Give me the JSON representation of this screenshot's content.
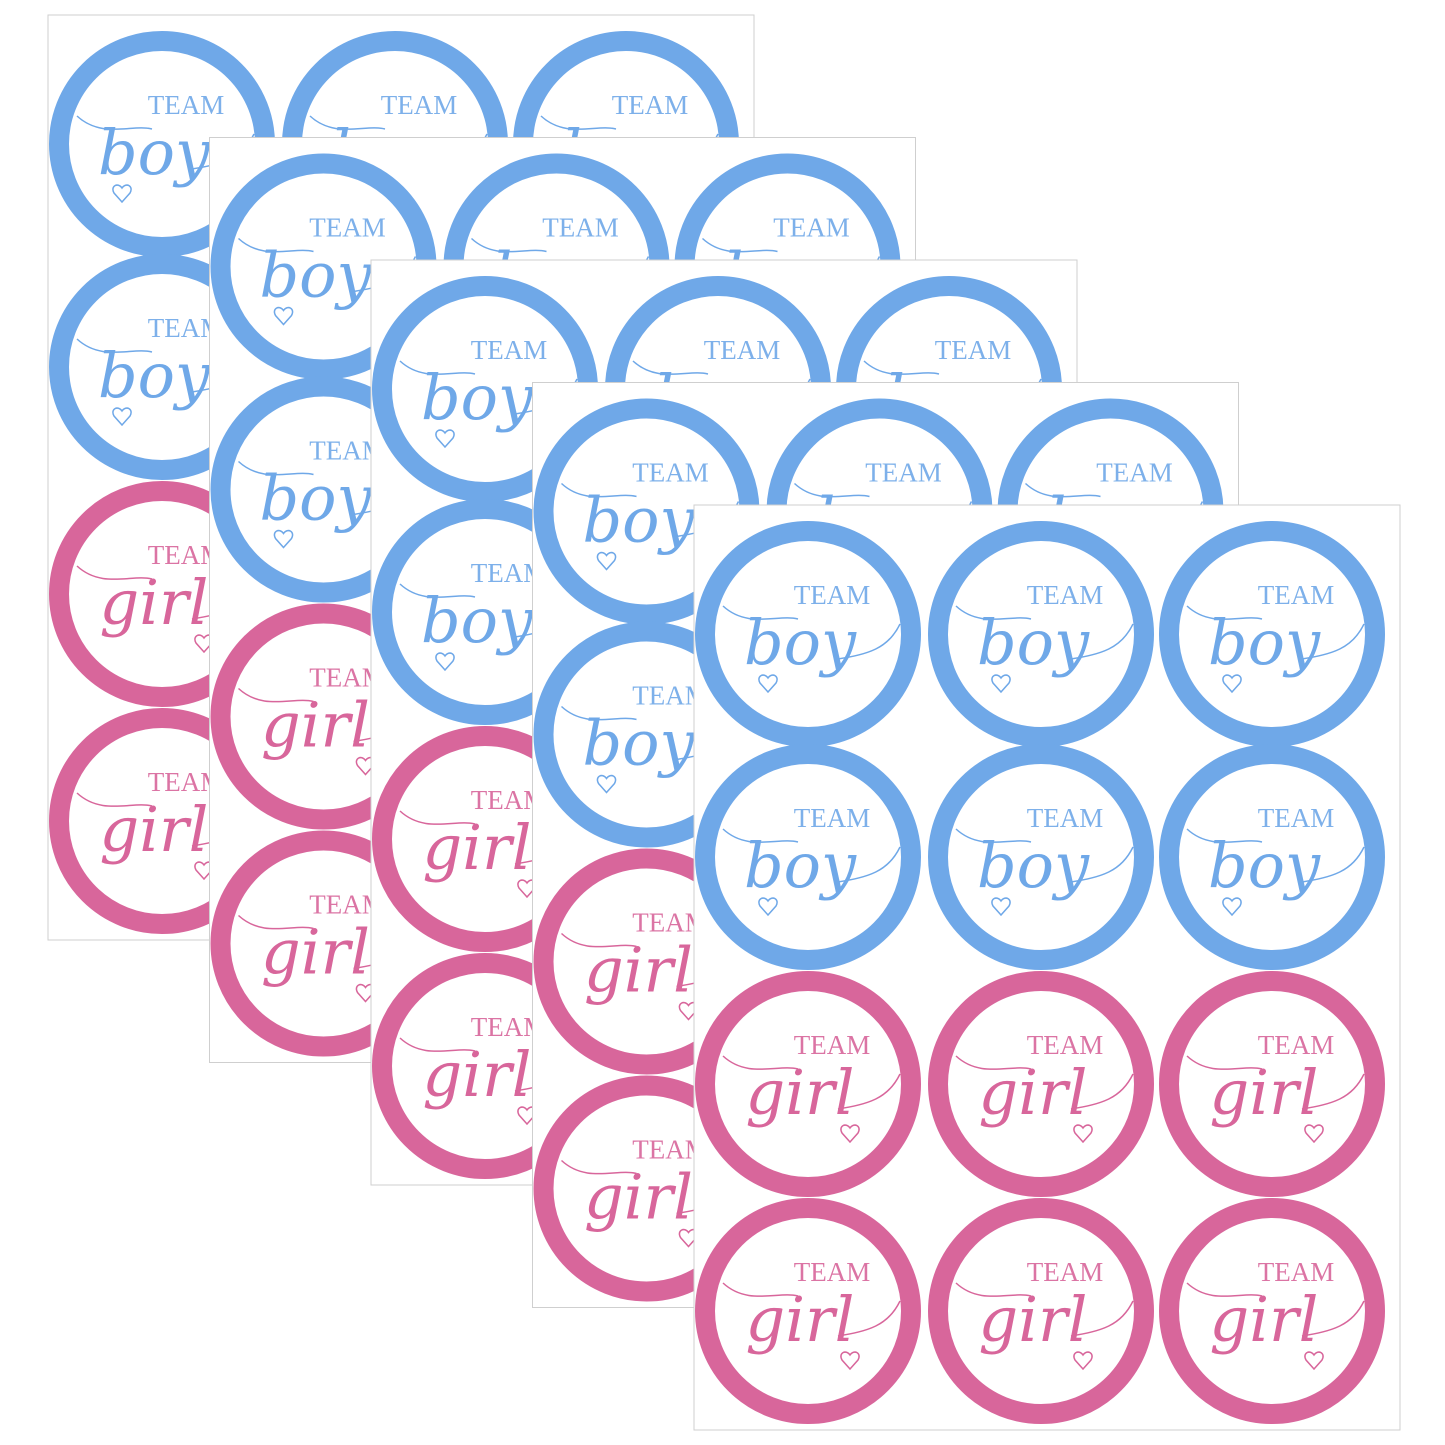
{
  "sheet": {
    "stickers": [
      {
        "team": "TEAM",
        "word": "boy",
        "color": "#6fa8e8"
      },
      {
        "team": "TEAM",
        "word": "boy",
        "color": "#6fa8e8"
      },
      {
        "team": "TEAM",
        "word": "boy",
        "color": "#6fa8e8"
      },
      {
        "team": "TEAM",
        "word": "boy",
        "color": "#6fa8e8"
      },
      {
        "team": "TEAM",
        "word": "boy",
        "color": "#6fa8e8"
      },
      {
        "team": "TEAM",
        "word": "boy",
        "color": "#6fa8e8"
      },
      {
        "team": "TEAM",
        "word": "girl",
        "color": "#d8669b"
      },
      {
        "team": "TEAM",
        "word": "girl",
        "color": "#d8669b"
      },
      {
        "team": "TEAM",
        "word": "girl",
        "color": "#d8669b"
      },
      {
        "team": "TEAM",
        "word": "girl",
        "color": "#d8669b"
      },
      {
        "team": "TEAM",
        "word": "girl",
        "color": "#d8669b"
      },
      {
        "team": "TEAM",
        "word": "girl",
        "color": "#d8669b"
      }
    ]
  }
}
